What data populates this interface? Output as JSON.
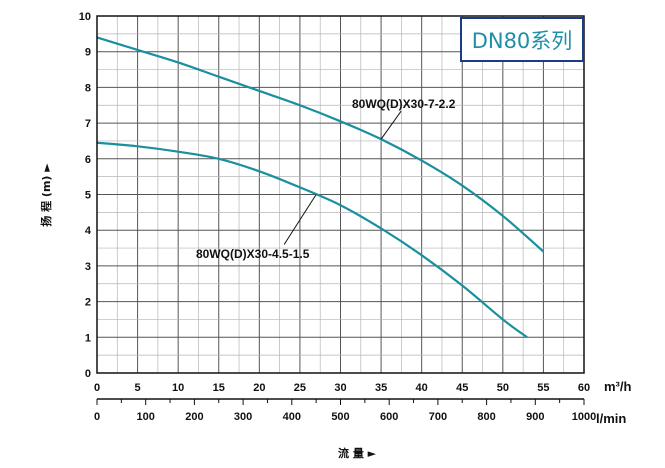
{
  "chart_data": {
    "type": "line",
    "title": "DN80系列",
    "xlabel": "流 量 ►",
    "ylabel": "扬 程 (m) ►",
    "x_unit_primary": "m³/h",
    "x_unit_secondary": "l/min",
    "xlim": [
      0,
      60
    ],
    "ylim": [
      0,
      10
    ],
    "x_ticks": [
      "0",
      "5",
      "10",
      "15",
      "20",
      "25",
      "30",
      "35",
      "40",
      "45",
      "50",
      "55",
      "60"
    ],
    "x2_ticks": [
      "0",
      "100",
      "200",
      "300",
      "400",
      "500",
      "600",
      "700",
      "800",
      "900",
      "1000"
    ],
    "y_ticks": [
      "0",
      "1",
      "2",
      "3",
      "4",
      "5",
      "6",
      "7",
      "8",
      "9",
      "10"
    ],
    "grid": true,
    "series": [
      {
        "name": "80WQ(D)X30-7-2.2",
        "color": "#1a8fa0",
        "x": [
          0,
          5,
          10,
          15,
          20,
          25,
          30,
          35,
          40,
          45,
          50,
          55
        ],
        "y": [
          9.4,
          9.05,
          8.7,
          8.3,
          7.9,
          7.5,
          7.05,
          6.55,
          5.95,
          5.25,
          4.4,
          3.4
        ]
      },
      {
        "name": "80WQ(D)X30-4.5-1.5",
        "color": "#1a8fa0",
        "x": [
          0,
          5,
          10,
          15,
          20,
          25,
          30,
          35,
          40,
          45,
          50,
          53
        ],
        "y": [
          6.45,
          6.35,
          6.2,
          6.0,
          5.65,
          5.2,
          4.7,
          4.05,
          3.3,
          2.45,
          1.5,
          1.0
        ]
      }
    ]
  }
}
